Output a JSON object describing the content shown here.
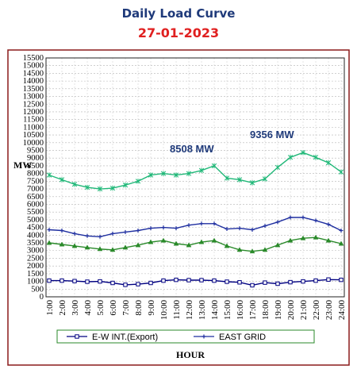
{
  "header": {
    "title": "Daily Load Curve",
    "date": "27-01-2023"
  },
  "chart_data": {
    "type": "line",
    "ylabel": "MW",
    "xlabel": "HOUR",
    "ylim": [
      0,
      15500
    ],
    "y_ticks": [
      0,
      500,
      1000,
      1500,
      2000,
      2500,
      3000,
      3500,
      4000,
      4500,
      5000,
      5500,
      6000,
      6500,
      7000,
      7500,
      8000,
      8500,
      9000,
      9500,
      10000,
      10500,
      11000,
      11500,
      12000,
      12500,
      13000,
      13500,
      14000,
      14500,
      15000,
      15500
    ],
    "x": [
      "1:00",
      "2:00",
      "3:00",
      "4:00",
      "5:00",
      "6:00",
      "7:00",
      "8:00",
      "9:00",
      "10:00",
      "11:00",
      "12:00",
      "13:00",
      "14:00",
      "15:00",
      "16:00",
      "17:00",
      "18:00",
      "19:00",
      "20:00",
      "21:00",
      "22:00",
      "23:00",
      "24:00"
    ],
    "grid": true,
    "legend": "bottom",
    "annotations": [
      {
        "text": "8508 MW"
      },
      {
        "text": "9356 MW"
      }
    ],
    "series": [
      {
        "name": "E-W INT.(Export)",
        "color": "#000080",
        "marker": "square",
        "values": [
          1050,
          1050,
          1020,
          980,
          1000,
          900,
          780,
          820,
          900,
          1050,
          1100,
          1080,
          1080,
          1050,
          980,
          940,
          750,
          920,
          850,
          950,
          1000,
          1050,
          1120,
          1100
        ]
      },
      {
        "name": "EAST GRID",
        "color": "#1f2fa0",
        "marker": "plus",
        "values": [
          4350,
          4300,
          4100,
          3950,
          3900,
          4100,
          4200,
          4300,
          4450,
          4500,
          4450,
          4650,
          4750,
          4750,
          4400,
          4450,
          4350,
          4600,
          4850,
          5150,
          5150,
          4950,
          4700,
          4300
        ]
      },
      {
        "color": "#2a8a2a",
        "marker": "triangle",
        "values": [
          3500,
          3400,
          3300,
          3200,
          3100,
          3050,
          3200,
          3350,
          3550,
          3650,
          3450,
          3350,
          3550,
          3650,
          3300,
          3050,
          2950,
          3050,
          3350,
          3650,
          3800,
          3850,
          3650,
          3450
        ]
      },
      {
        "color": "#20b878",
        "marker": "star",
        "values": [
          7900,
          7600,
          7300,
          7100,
          7000,
          7050,
          7250,
          7500,
          7900,
          8000,
          7900,
          8000,
          8200,
          8500,
          7700,
          7600,
          7400,
          7650,
          8400,
          9050,
          9356,
          9050,
          8700,
          8100
        ]
      }
    ]
  }
}
